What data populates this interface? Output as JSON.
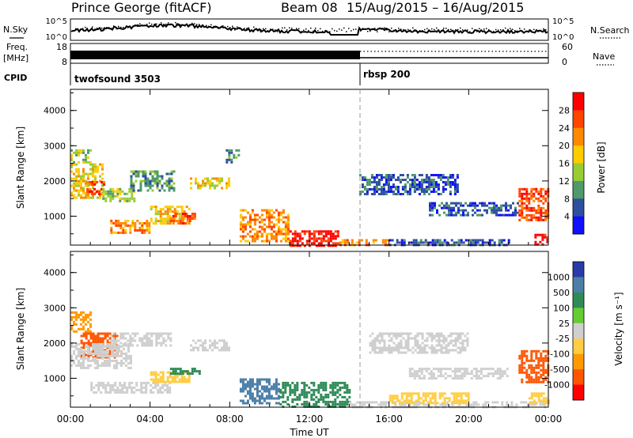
{
  "header": {
    "title": "Prince George (fitACF)",
    "beam": "Beam 08",
    "date_range": "15/Aug/2015 – 16/Aug/2015"
  },
  "top_panels": {
    "nsky_label": "N.Sky",
    "nsky_ticks": [
      "10^5",
      "10^0"
    ],
    "nsearch_label": "N.Search",
    "nsearch_ticks": [
      "10^5",
      "10^0"
    ],
    "freq_label": "Freq.",
    "freq_unit": "[MHz]",
    "freq_ticks": [
      "18",
      "8"
    ],
    "nave_label": "Nave",
    "nave_ticks": [
      "60",
      "0"
    ],
    "cpid_label": "CPID",
    "cpid_segments": [
      {
        "name": "twofsound 3503",
        "start_hour": 0,
        "end_hour": 14.5
      },
      {
        "name": "rbsp 200",
        "start_hour": 14.5,
        "end_hour": 24
      }
    ]
  },
  "power_colorbar": {
    "label": "Power [dB]",
    "ticks": [
      "28",
      "24",
      "20",
      "16",
      "12",
      "8",
      "4"
    ],
    "colors": [
      "#ff0000",
      "#ff4400",
      "#ff8800",
      "#ffcc00",
      "#99cc33",
      "#4f9a6a",
      "#2f4f9f",
      "#1010ff"
    ]
  },
  "velocity_colorbar": {
    "label": "Velocity [m s⁻¹]",
    "ticks": [
      "1000",
      "500",
      "100",
      "25",
      "-25",
      "-100",
      "-500",
      "-1000"
    ],
    "colors": [
      "#2a3aa8",
      "#4b7fa8",
      "#2e8b57",
      "#66cc33",
      "#cfcfcf",
      "#ffcc44",
      "#ff9900",
      "#ff5500",
      "#ff0000"
    ]
  },
  "axes": {
    "ylabel": "Slant Range [km]",
    "yticks": [
      "4000",
      "3000",
      "2000",
      "1000"
    ],
    "xlabel": "Time UT",
    "xticks": [
      "00:00",
      "04:00",
      "08:00",
      "12:00",
      "16:00",
      "20:00",
      "00:00"
    ]
  },
  "chart_data": [
    {
      "type": "heatmap",
      "title": "",
      "ylabel": "Slant Range [km]",
      "xlabel": "",
      "xlim_hours": [
        0,
        24
      ],
      "ylim": [
        180,
        4600
      ],
      "quantity": "Power [dB]",
      "regions": [
        {
          "t0": 0.0,
          "t1": 1.6,
          "r0": 1500,
          "r1": 2500,
          "value": 16
        },
        {
          "t0": 0.0,
          "t1": 1.0,
          "r0": 2500,
          "r1": 2900,
          "value": 12
        },
        {
          "t0": 0.8,
          "t1": 1.7,
          "r0": 1600,
          "r1": 2000,
          "value": 24
        },
        {
          "t0": 1.6,
          "t1": 3.2,
          "r0": 1400,
          "r1": 1800,
          "value": 12
        },
        {
          "t0": 2.0,
          "t1": 4.0,
          "r0": 500,
          "r1": 900,
          "value": 20
        },
        {
          "t0": 3.0,
          "t1": 5.2,
          "r0": 1700,
          "r1": 2300,
          "value": 8
        },
        {
          "t0": 4.0,
          "t1": 6.0,
          "r0": 800,
          "r1": 1300,
          "value": 16
        },
        {
          "t0": 5.0,
          "t1": 6.2,
          "r0": 800,
          "r1": 1100,
          "value": 24
        },
        {
          "t0": 6.0,
          "t1": 8.0,
          "r0": 1800,
          "r1": 2100,
          "value": 16
        },
        {
          "t0": 7.8,
          "t1": 8.4,
          "r0": 2500,
          "r1": 2900,
          "value": 8
        },
        {
          "t0": 8.5,
          "t1": 11.0,
          "r0": 300,
          "r1": 1200,
          "value": 20
        },
        {
          "t0": 11.0,
          "t1": 13.5,
          "r0": 180,
          "r1": 600,
          "value": 28
        },
        {
          "t0": 13.5,
          "t1": 16.0,
          "r0": 180,
          "r1": 350,
          "value": 20
        },
        {
          "t0": 14.5,
          "t1": 19.5,
          "r0": 1600,
          "r1": 2200,
          "value": 4
        },
        {
          "t0": 16.0,
          "t1": 22.0,
          "r0": 180,
          "r1": 350,
          "value": 4
        },
        {
          "t0": 18.0,
          "t1": 22.5,
          "r0": 1000,
          "r1": 1400,
          "value": 4
        },
        {
          "t0": 22.5,
          "t1": 24.0,
          "r0": 900,
          "r1": 1800,
          "value": 24
        },
        {
          "t0": 23.3,
          "t1": 24.0,
          "r0": 180,
          "r1": 500,
          "value": 28
        }
      ]
    },
    {
      "type": "heatmap",
      "title": "",
      "ylabel": "Slant Range [km]",
      "xlabel": "Time UT",
      "xlim_hours": [
        0,
        24
      ],
      "ylim": [
        180,
        4600
      ],
      "quantity": "Velocity [m s⁻¹]",
      "regions": [
        {
          "t0": 0.0,
          "t1": 1.0,
          "r0": 2300,
          "r1": 2900,
          "value": -500
        },
        {
          "t0": 0.5,
          "t1": 2.3,
          "r0": 1600,
          "r1": 2300,
          "value": -1000
        },
        {
          "t0": 0.0,
          "t1": 3.0,
          "r0": 1300,
          "r1": 2000,
          "value": 0
        },
        {
          "t0": 2.0,
          "t1": 5.0,
          "r0": 1900,
          "r1": 2300,
          "value": 0
        },
        {
          "t0": 1.0,
          "t1": 5.0,
          "r0": 600,
          "r1": 900,
          "value": 0
        },
        {
          "t0": 4.0,
          "t1": 6.0,
          "r0": 900,
          "r1": 1200,
          "value": -100
        },
        {
          "t0": 6.0,
          "t1": 8.0,
          "r0": 1800,
          "r1": 2100,
          "value": 0
        },
        {
          "t0": 5.0,
          "t1": 6.5,
          "r0": 1100,
          "r1": 1300,
          "value": 100
        },
        {
          "t0": 8.5,
          "t1": 10.5,
          "r0": 300,
          "r1": 1000,
          "value": 500
        },
        {
          "t0": 10.5,
          "t1": 14.0,
          "r0": 200,
          "r1": 900,
          "value": 100
        },
        {
          "t0": 14.0,
          "t1": 24.0,
          "r0": 180,
          "r1": 350,
          "value": 0
        },
        {
          "t0": 15.0,
          "t1": 20.0,
          "r0": 1700,
          "r1": 2300,
          "value": 0
        },
        {
          "t0": 16.0,
          "t1": 20.0,
          "r0": 300,
          "r1": 600,
          "value": -100
        },
        {
          "t0": 17.0,
          "t1": 22.0,
          "r0": 1000,
          "r1": 1300,
          "value": 0
        },
        {
          "t0": 22.5,
          "t1": 24.0,
          "r0": 900,
          "r1": 1800,
          "value": -1000
        },
        {
          "t0": 23.0,
          "t1": 24.0,
          "r0": 300,
          "r1": 600,
          "value": -100
        }
      ]
    }
  ]
}
